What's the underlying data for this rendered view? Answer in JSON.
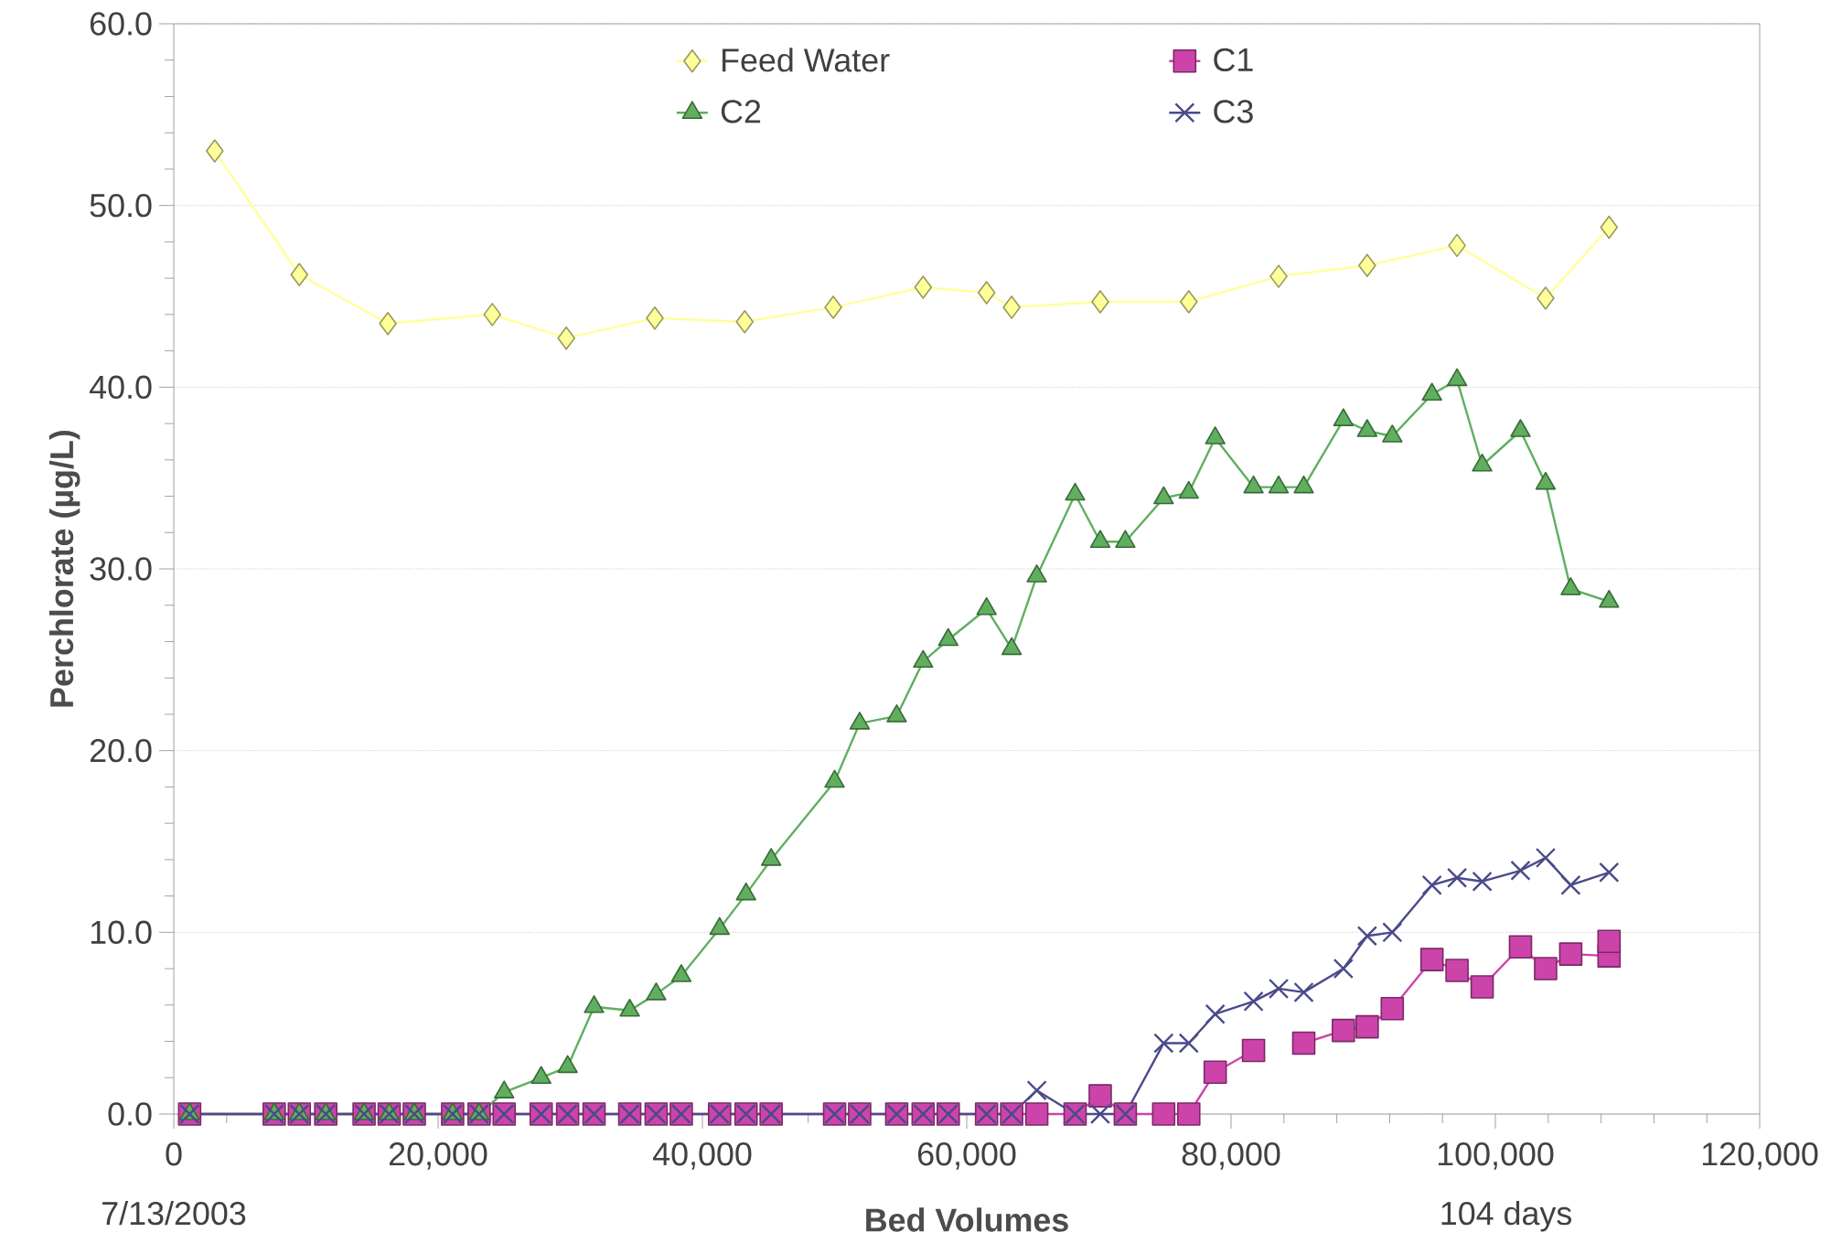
{
  "chart_data": {
    "type": "line",
    "xlabel": "Bed Volumes",
    "ylabel": "Perchlorate (µg/L)",
    "xlim": [
      0,
      120000
    ],
    "ylim": [
      0,
      60
    ],
    "xticks": [
      0,
      {
        "value": 20000,
        "label": "20,000"
      },
      {
        "value": 40000,
        "label": "40,000"
      },
      {
        "value": 60000,
        "label": "60,000"
      },
      {
        "value": 80000,
        "label": "80,000"
      },
      {
        "value": 100000,
        "label": "100,000"
      },
      {
        "value": 120000,
        "label": "120,000"
      }
    ],
    "yticks": [
      {
        "value": 0,
        "label": "0.0"
      },
      {
        "value": 10,
        "label": "10.0"
      },
      {
        "value": 20,
        "label": "20.0"
      },
      {
        "value": 30,
        "label": "30.0"
      },
      {
        "value": 40,
        "label": "40.0"
      },
      {
        "value": 50,
        "label": "50.0"
      },
      {
        "value": 60,
        "label": "60.0"
      }
    ],
    "grid": "y",
    "legend": "top",
    "annotations": [
      "7/13/2003",
      "104 days"
    ],
    "series": [
      {
        "name": "Feed Water",
        "color": "#ffff99",
        "marker": "diamond",
        "x": [
          3100,
          9500,
          16200,
          24100,
          29700,
          36400,
          43200,
          49900,
          56700,
          61500,
          63400,
          70100,
          76800,
          83600,
          90300,
          97100,
          103800,
          108600
        ],
        "values": [
          53.0,
          46.2,
          43.5,
          44.0,
          42.7,
          43.8,
          43.6,
          44.4,
          45.5,
          45.2,
          44.4,
          44.7,
          44.7,
          46.1,
          46.7,
          47.8,
          44.9,
          48.8
        ]
      },
      {
        "name": "C1",
        "color": "#cc44aa",
        "marker": "square",
        "x": [
          1200,
          7600,
          9500,
          11500,
          14400,
          16300,
          18200,
          21100,
          23100,
          25000,
          27800,
          29800,
          31800,
          34500,
          36500,
          38400,
          41300,
          43300,
          45200,
          50000,
          51900,
          54700,
          56700,
          58600,
          61500,
          63400,
          65300,
          68200,
          70100,
          72000,
          74900,
          76800,
          78800,
          81700,
          83600,
          85500,
          88500,
          90300,
          92200,
          95200,
          97100,
          99000,
          101900,
          103800,
          105700,
          108600,
          108600
        ],
        "values": [
          0,
          0,
          0,
          0,
          0,
          0,
          0,
          0,
          0,
          0,
          0,
          0,
          0,
          0,
          0,
          0,
          0,
          0,
          0,
          0,
          0,
          0,
          0,
          0,
          0,
          0,
          0,
          0,
          1.0,
          0,
          0,
          0,
          2.3,
          3.5,
          null,
          3.9,
          4.6,
          4.8,
          5.8,
          8.5,
          7.9,
          7.0,
          9.2,
          8.0,
          8.8,
          8.7,
          9.5
        ]
      },
      {
        "name": "C2",
        "color": "#5faf5f",
        "marker": "triangle",
        "x": [
          1200,
          7600,
          9500,
          11500,
          14400,
          16300,
          18200,
          21100,
          23100,
          25000,
          27800,
          29800,
          31800,
          34500,
          36500,
          38400,
          41300,
          43300,
          45200,
          50000,
          51900,
          54700,
          56700,
          58600,
          61500,
          63400,
          65300,
          68200,
          70100,
          72000,
          74900,
          76800,
          78800,
          81700,
          83600,
          85500,
          88500,
          90300,
          92200,
          95200,
          97100,
          99000,
          101900,
          103800,
          105700,
          108600
        ],
        "values": [
          0,
          0,
          0,
          0,
          0,
          0,
          0,
          0,
          0,
          1.2,
          2.0,
          2.6,
          5.9,
          5.7,
          6.6,
          7.6,
          10.2,
          12.1,
          14.0,
          18.3,
          21.5,
          21.9,
          24.9,
          26.1,
          27.8,
          25.6,
          29.6,
          34.1,
          31.5,
          31.5,
          33.9,
          34.2,
          37.2,
          34.5,
          34.5,
          34.5,
          38.2,
          37.6,
          37.3,
          39.6,
          40.4,
          35.7,
          37.6,
          34.7,
          28.9,
          28.2
        ]
      },
      {
        "name": "C3",
        "color": "#4a4a8a",
        "marker": "cross",
        "x": [
          1200,
          7600,
          9500,
          11500,
          14400,
          16300,
          18200,
          21100,
          23100,
          25000,
          27800,
          29800,
          31800,
          34500,
          36500,
          38400,
          41300,
          43300,
          45200,
          50000,
          51900,
          54700,
          56700,
          58600,
          61500,
          63400,
          65300,
          68200,
          70100,
          72000,
          74900,
          76800,
          78800,
          81700,
          83600,
          85500,
          88500,
          90300,
          92200,
          95200,
          97100,
          99000,
          101900,
          103800,
          105700,
          108600
        ],
        "values": [
          0,
          0,
          0,
          0,
          0,
          0,
          0,
          0,
          0,
          0,
          0,
          0,
          0,
          0,
          0,
          0,
          0,
          0,
          0,
          0,
          0,
          0,
          0,
          0,
          0,
          0,
          1.3,
          0,
          0,
          0,
          3.9,
          3.9,
          5.5,
          6.2,
          6.9,
          6.7,
          8.0,
          9.8,
          10.0,
          12.6,
          13.0,
          12.8,
          13.4,
          14.1,
          12.6,
          13.3
        ]
      }
    ]
  }
}
